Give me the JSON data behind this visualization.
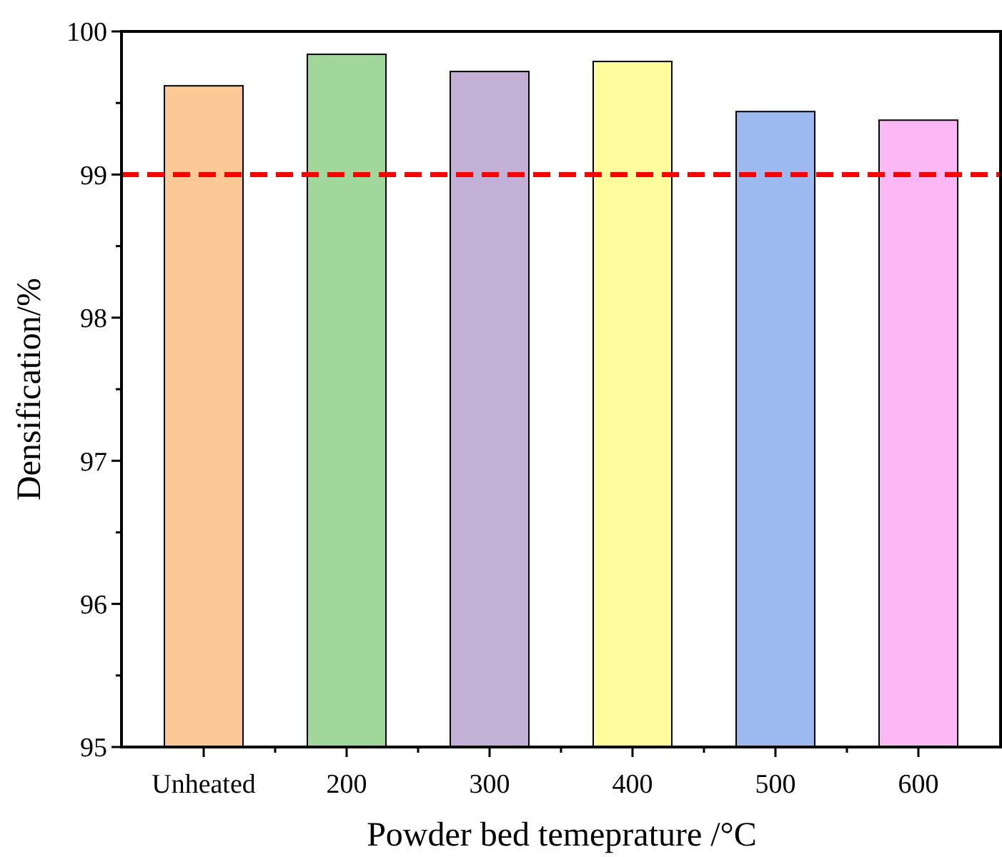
{
  "chart_data": {
    "type": "bar",
    "xlabel": "Powder bed temeprature /°C",
    "ylabel": "Densification/%",
    "categories": [
      "Unheated",
      "200",
      "300",
      "400",
      "500",
      "600"
    ],
    "values": [
      99.62,
      99.84,
      99.72,
      99.79,
      99.44,
      99.38
    ],
    "colors": [
      "#fbc896",
      "#a0d89c",
      "#c2b0d6",
      "#fefc9c",
      "#9cbaf0",
      "#fcb8f4"
    ],
    "ylim": [
      95,
      100
    ],
    "yticks": [
      95,
      {
        "value": 95.5,
        "label": null
      },
      96,
      {
        "value": 96.5,
        "label": null
      },
      97,
      {
        "value": 97.5,
        "label": null
      },
      98,
      {
        "value": 98.5,
        "label": null
      },
      99,
      {
        "value": 99.5,
        "label": null
      },
      100
    ],
    "ref_lines": [
      {
        "axis": "y",
        "value": 99,
        "color": "#ff0000",
        "line_style": "dashed"
      }
    ],
    "grid": false
  }
}
